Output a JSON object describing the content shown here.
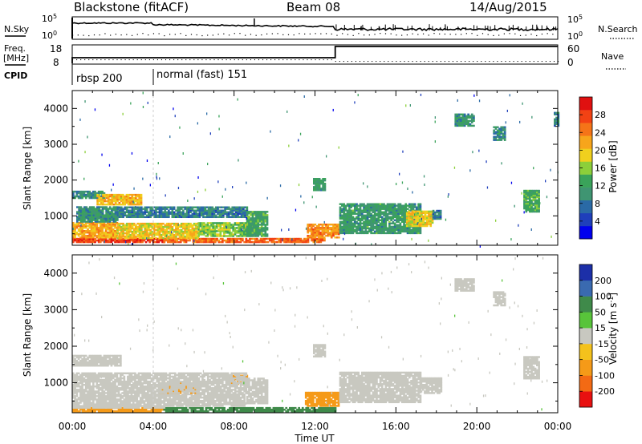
{
  "header": {
    "title": "Blackstone (fitACF)",
    "beam": "Beam 08",
    "date": "14/Aug/2015"
  },
  "top_panel": {
    "nsky_label": "N.Sky",
    "nsky_ticks": [
      "10^5",
      "10^0"
    ],
    "nsearch_label": "N.Search",
    "nsearch_ticks": [
      "10^5",
      "10^0"
    ],
    "freq_label": "Freq.",
    "freq_unit": "[MHz]",
    "freq_ticks": [
      "18",
      "8"
    ],
    "nave_label": "Nave",
    "nave_ticks": [
      "60",
      "0"
    ],
    "cpid_label": "CPID",
    "cpid_modes": [
      {
        "label": "rbsp 200",
        "start_h": 0
      },
      {
        "label": "normal (fast) 151",
        "start_h": 4
      }
    ]
  },
  "chart_data": [
    {
      "type": "heatmap",
      "name": "power",
      "ylabel": "Slant Range [km]",
      "xlabel": "Time UT",
      "x_ticks": [
        "00:00",
        "04:00",
        "08:00",
        "12:00",
        "16:00",
        "20:00",
        "00:00"
      ],
      "y_ticks": [
        1000,
        2000,
        3000,
        4000
      ],
      "ylim": [
        180,
        4500
      ],
      "colorbar_label": "Power [dB]",
      "colorbar_ticks": [
        4,
        8,
        12,
        16,
        20,
        24,
        28
      ],
      "colorbar_range": [
        0,
        32
      ],
      "regions": [
        {
          "t": [
            0.0,
            4.5
          ],
          "r": [
            250,
            380
          ],
          "level": 29
        },
        {
          "t": [
            4.5,
            12.5
          ],
          "r": [
            250,
            360
          ],
          "level": 27
        },
        {
          "t": [
            0.0,
            2.2
          ],
          "r": [
            380,
            820
          ],
          "level": 22
        },
        {
          "t": [
            2.2,
            6.2
          ],
          "r": [
            360,
            800
          ],
          "level": 20
        },
        {
          "t": [
            6.2,
            9.0
          ],
          "r": [
            420,
            800
          ],
          "level": 15
        },
        {
          "t": [
            0.2,
            2.2
          ],
          "r": [
            820,
            1250
          ],
          "level": 10
        },
        {
          "t": [
            2.2,
            8.6
          ],
          "r": [
            950,
            1250
          ],
          "level": 8
        },
        {
          "t": [
            0.0,
            1.6
          ],
          "r": [
            1480,
            1700
          ],
          "level": 9
        },
        {
          "t": [
            1.2,
            3.4
          ],
          "r": [
            1300,
            1600
          ],
          "level": 21
        },
        {
          "t": [
            8.6,
            9.6
          ],
          "r": [
            420,
            1120
          ],
          "level": 12
        },
        {
          "t": [
            11.6,
            13.2
          ],
          "r": [
            380,
            780
          ],
          "level": 24
        },
        {
          "t": [
            13.2,
            17.2
          ],
          "r": [
            500,
            1350
          ],
          "level": 11
        },
        {
          "t": [
            16.5,
            17.8
          ],
          "r": [
            700,
            1150
          ],
          "level": 19
        },
        {
          "t": [
            17.8,
            18.2
          ],
          "r": [
            900,
            1150
          ],
          "level": 8
        },
        {
          "t": [
            11.9,
            12.5
          ],
          "r": [
            1700,
            2050
          ],
          "level": 11
        },
        {
          "t": [
            18.9,
            19.8
          ],
          "r": [
            3500,
            3850
          ],
          "level": 10
        },
        {
          "t": [
            20.8,
            21.4
          ],
          "r": [
            3100,
            3500
          ],
          "level": 9
        },
        {
          "t": [
            22.3,
            23.1
          ],
          "r": [
            1100,
            1700
          ],
          "level": 13
        },
        {
          "t": [
            23.8,
            24.0
          ],
          "r": [
            3500,
            3900
          ],
          "level": 8
        }
      ]
    },
    {
      "type": "heatmap",
      "name": "velocity",
      "ylabel": "Slant Range [km]",
      "xlabel": "Time UT",
      "x_ticks": [
        "00:00",
        "04:00",
        "08:00",
        "12:00",
        "16:00",
        "20:00",
        "00:00"
      ],
      "y_ticks": [
        1000,
        2000,
        3000,
        4000
      ],
      "ylim": [
        180,
        4500
      ],
      "colorbar_label": "Velocity [m s^-1]",
      "colorbar_ticks": [
        200,
        100,
        50,
        15,
        -15,
        -50,
        -100,
        -200
      ],
      "regions": [
        {
          "t": [
            0.0,
            4.5
          ],
          "r": [
            200,
            300
          ],
          "level": -60
        },
        {
          "t": [
            4.5,
            13.0
          ],
          "r": [
            200,
            300
          ],
          "level": 40
        },
        {
          "t": [
            0.0,
            4.5
          ],
          "r": [
            300,
            700
          ],
          "level": 0
        },
        {
          "t": [
            4.5,
            8.5
          ],
          "r": [
            350,
            700
          ],
          "level": 0
        },
        {
          "t": [
            4.3,
            6.2
          ],
          "r": [
            700,
            1000
          ],
          "level": -40
        },
        {
          "t": [
            7.6,
            8.6
          ],
          "r": [
            950,
            1200
          ],
          "level": -40
        },
        {
          "t": [
            0.0,
            8.6
          ],
          "r": [
            700,
            1250
          ],
          "level": 0
        },
        {
          "t": [
            0.0,
            2.4
          ],
          "r": [
            1450,
            1750
          ],
          "level": 0
        },
        {
          "t": [
            8.6,
            9.6
          ],
          "r": [
            420,
            1120
          ],
          "level": 0
        },
        {
          "t": [
            11.5,
            13.2
          ],
          "r": [
            350,
            750
          ],
          "level": -45
        },
        {
          "t": [
            13.2,
            17.2
          ],
          "r": [
            450,
            1300
          ],
          "level": 0
        },
        {
          "t": [
            17.2,
            18.2
          ],
          "r": [
            700,
            1150
          ],
          "level": 0
        },
        {
          "t": [
            11.9,
            12.5
          ],
          "r": [
            1700,
            2050
          ],
          "level": 0
        },
        {
          "t": [
            18.9,
            19.8
          ],
          "r": [
            3500,
            3850
          ],
          "level": 0
        },
        {
          "t": [
            20.8,
            21.4
          ],
          "r": [
            3100,
            3500
          ],
          "level": 0
        },
        {
          "t": [
            22.3,
            23.1
          ],
          "r": [
            1100,
            1700
          ],
          "level": 0
        }
      ]
    }
  ]
}
